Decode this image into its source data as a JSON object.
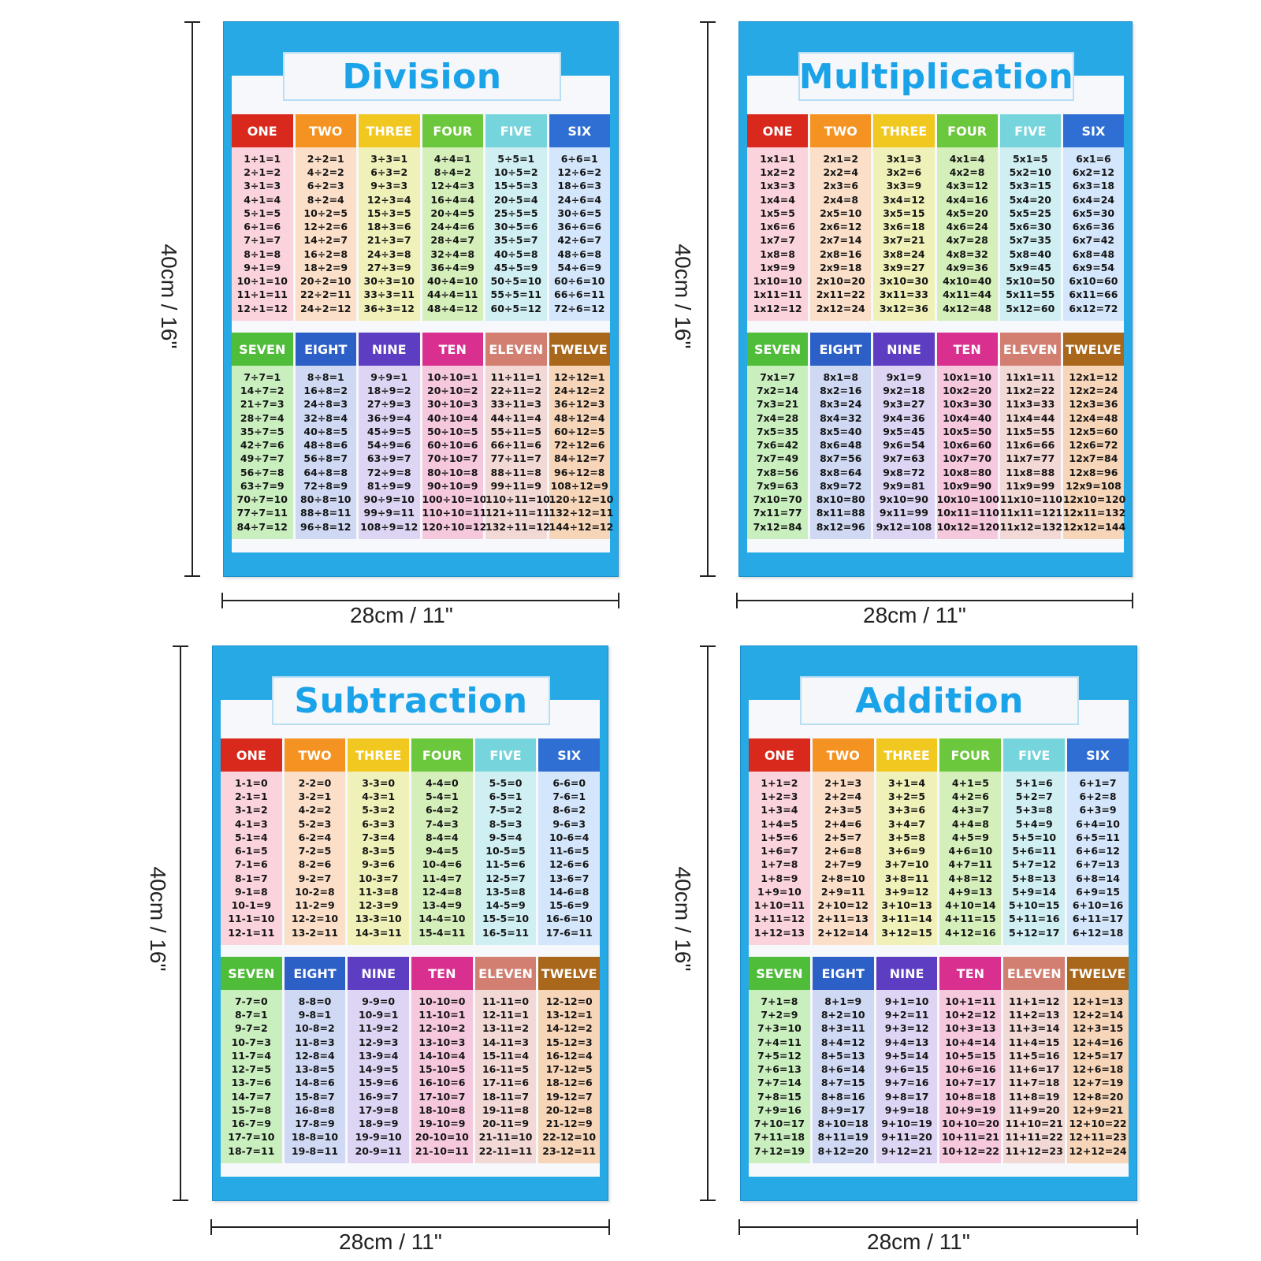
{
  "columns": {
    "top": [
      "ONE",
      "TWO",
      "THREE",
      "FOUR",
      "FIVE",
      "SIX"
    ],
    "bottom": [
      "SEVEN",
      "EIGHT",
      "NINE",
      "TEN",
      "ELEVEN",
      "TWELVE"
    ]
  },
  "colors": {
    "poster_blue": "#27a9e6",
    "title_text": "#1aa3e8",
    "header": [
      "#d9291c",
      "#f59322",
      "#f1c81f",
      "#6bc73c",
      "#76d5dc",
      "#2f6fd3",
      "#4fbd3a",
      "#2d60c7",
      "#5d3ec2",
      "#d92f8f",
      "#d27f72",
      "#a8671a"
    ],
    "body": [
      "#fbd3dd",
      "#fbdfc8",
      "#f0f1b9",
      "#d5efbb",
      "#cfeff3",
      "#d4e6fb",
      "#c9efbf",
      "#cfd9f3",
      "#ddd5f3",
      "#f6c8de",
      "#f3d9d6",
      "#f6d5b8"
    ]
  },
  "posters": {
    "division": {
      "title": "Division",
      "height_label": "40cm / 16\"",
      "width_label": "28cm / 11\"",
      "columns": [
        [
          "1÷1=1",
          "2÷1=2",
          "3÷1=3",
          "4÷1=4",
          "5÷1=5",
          "6÷1=6",
          "7÷1=7",
          "8÷1=8",
          "9÷1=9",
          "10÷1=10",
          "11÷1=11",
          "12÷1=12"
        ],
        [
          "2÷2=1",
          "4÷2=2",
          "6÷2=3",
          "8÷2=4",
          "10÷2=5",
          "12÷2=6",
          "14÷2=7",
          "16÷2=8",
          "18÷2=9",
          "20÷2=10",
          "22÷2=11",
          "24÷2=12"
        ],
        [
          "3÷3=1",
          "6÷3=2",
          "9÷3=3",
          "12÷3=4",
          "15÷3=5",
          "18÷3=6",
          "21÷3=7",
          "24÷3=8",
          "27÷3=9",
          "30÷3=10",
          "33÷3=11",
          "36÷3=12"
        ],
        [
          "4÷4=1",
          "8÷4=2",
          "12÷4=3",
          "16÷4=4",
          "20÷4=5",
          "24÷4=6",
          "28÷4=7",
          "32÷4=8",
          "36÷4=9",
          "40÷4=10",
          "44÷4=11",
          "48÷4=12"
        ],
        [
          "5÷5=1",
          "10÷5=2",
          "15÷5=3",
          "20÷5=4",
          "25÷5=5",
          "30÷5=6",
          "35÷5=7",
          "40÷5=8",
          "45÷5=9",
          "50÷5=10",
          "55÷5=11",
          "60÷5=12"
        ],
        [
          "6÷6=1",
          "12÷6=2",
          "18÷6=3",
          "24÷6=4",
          "30÷6=5",
          "36÷6=6",
          "42÷6=7",
          "48÷6=8",
          "54÷6=9",
          "60÷6=10",
          "66÷6=11",
          "72÷6=12"
        ],
        [
          "7÷7=1",
          "14÷7=2",
          "21÷7=3",
          "28÷7=4",
          "35÷7=5",
          "42÷7=6",
          "49÷7=7",
          "56÷7=8",
          "63÷7=9",
          "70÷7=10",
          "77÷7=11",
          "84÷7=12"
        ],
        [
          "8÷8=1",
          "16÷8=2",
          "24÷8=3",
          "32÷8=4",
          "40÷8=5",
          "48÷8=6",
          "56÷8=7",
          "64÷8=8",
          "72÷8=9",
          "80÷8=10",
          "88÷8=11",
          "96÷8=12"
        ],
        [
          "9÷9=1",
          "18÷9=2",
          "27÷9=3",
          "36÷9=4",
          "45÷9=5",
          "54÷9=6",
          "63÷9=7",
          "72÷9=8",
          "81÷9=9",
          "90÷9=10",
          "99÷9=11",
          "108÷9=12"
        ],
        [
          "10÷10=1",
          "20÷10=2",
          "30÷10=3",
          "40÷10=4",
          "50÷10=5",
          "60÷10=6",
          "70÷10=7",
          "80÷10=8",
          "90÷10=9",
          "100÷10=10",
          "110÷10=11",
          "120÷10=12"
        ],
        [
          "11÷11=1",
          "22÷11=2",
          "33÷11=3",
          "44÷11=4",
          "55÷11=5",
          "66÷11=6",
          "77÷11=7",
          "88÷11=8",
          "99÷11=9",
          "110÷11=10",
          "121÷11=11",
          "132÷11=12"
        ],
        [
          "12÷12=1",
          "24÷12=2",
          "36÷12=3",
          "48÷12=4",
          "60÷12=5",
          "72÷12=6",
          "84÷12=7",
          "96÷12=8",
          "108÷12=9",
          "120÷12=10",
          "132÷12=11",
          "144÷12=12"
        ]
      ]
    },
    "multiplication": {
      "title": "Multiplication",
      "height_label": "40cm / 16\"",
      "width_label": "28cm / 11\"",
      "columns": [
        [
          "1x1=1",
          "1x2=2",
          "1x3=3",
          "1x4=4",
          "1x5=5",
          "1x6=6",
          "1x7=7",
          "1x8=8",
          "1x9=9",
          "1x10=10",
          "1x11=11",
          "1x12=12"
        ],
        [
          "2x1=2",
          "2x2=4",
          "2x3=6",
          "2x4=8",
          "2x5=10",
          "2x6=12",
          "2x7=14",
          "2x8=16",
          "2x9=18",
          "2x10=20",
          "2x11=22",
          "2x12=24"
        ],
        [
          "3x1=3",
          "3x2=6",
          "3x3=9",
          "3x4=12",
          "3x5=15",
          "3x6=18",
          "3x7=21",
          "3x8=24",
          "3x9=27",
          "3x10=30",
          "3x11=33",
          "3x12=36"
        ],
        [
          "4x1=4",
          "4x2=8",
          "4x3=12",
          "4x4=16",
          "4x5=20",
          "4x6=24",
          "4x7=28",
          "4x8=32",
          "4x9=36",
          "4x10=40",
          "4x11=44",
          "4x12=48"
        ],
        [
          "5x1=5",
          "5x2=10",
          "5x3=15",
          "5x4=20",
          "5x5=25",
          "5x6=30",
          "5x7=35",
          "5x8=40",
          "5x9=45",
          "5x10=50",
          "5x11=55",
          "5x12=60"
        ],
        [
          "6x1=6",
          "6x2=12",
          "6x3=18",
          "6x4=24",
          "6x5=30",
          "6x6=36",
          "6x7=42",
          "6x8=48",
          "6x9=54",
          "6x10=60",
          "6x11=66",
          "6x12=72"
        ],
        [
          "7x1=7",
          "7x2=14",
          "7x3=21",
          "7x4=28",
          "7x5=35",
          "7x6=42",
          "7x7=49",
          "7x8=56",
          "7x9=63",
          "7x10=70",
          "7x11=77",
          "7x12=84"
        ],
        [
          "8x1=8",
          "8x2=16",
          "8x3=24",
          "8x4=32",
          "8x5=40",
          "8x6=48",
          "8x7=56",
          "8x8=64",
          "8x9=72",
          "8x10=80",
          "8x11=88",
          "8x12=96"
        ],
        [
          "9x1=9",
          "9x2=18",
          "9x3=27",
          "9x4=36",
          "9x5=45",
          "9x6=54",
          "9x7=63",
          "9x8=72",
          "9x9=81",
          "9x10=90",
          "9x11=99",
          "9x12=108"
        ],
        [
          "10x1=10",
          "10x2=20",
          "10x3=30",
          "10x4=40",
          "10x5=50",
          "10x6=60",
          "10x7=70",
          "10x8=80",
          "10x9=90",
          "10x10=100",
          "10x11=110",
          "10x12=120"
        ],
        [
          "11x1=11",
          "11x2=22",
          "11x3=33",
          "11x4=44",
          "11x5=55",
          "11x6=66",
          "11x7=77",
          "11x8=88",
          "11x9=99",
          "11x10=110",
          "11x11=121",
          "11x12=132"
        ],
        [
          "12x1=12",
          "12x2=24",
          "12x3=36",
          "12x4=48",
          "12x5=60",
          "12x6=72",
          "12x7=84",
          "12x8=96",
          "12x9=108",
          "12x10=120",
          "12x11=132",
          "12x12=144"
        ]
      ]
    },
    "subtraction": {
      "title": "Subtraction",
      "height_label": "40cm / 16\"",
      "width_label": "28cm / 11\"",
      "columns": [
        [
          "1-1=0",
          "2-1=1",
          "3-1=2",
          "4-1=3",
          "5-1=4",
          "6-1=5",
          "7-1=6",
          "8-1=7",
          "9-1=8",
          "10-1=9",
          "11-1=10",
          "12-1=11"
        ],
        [
          "2-2=0",
          "3-2=1",
          "4-2=2",
          "5-2=3",
          "6-2=4",
          "7-2=5",
          "8-2=6",
          "9-2=7",
          "10-2=8",
          "11-2=9",
          "12-2=10",
          "13-2=11"
        ],
        [
          "3-3=0",
          "4-3=1",
          "5-3=2",
          "6-3=3",
          "7-3=4",
          "8-3=5",
          "9-3=6",
          "10-3=7",
          "11-3=8",
          "12-3=9",
          "13-3=10",
          "14-3=11"
        ],
        [
          "4-4=0",
          "5-4=1",
          "6-4=2",
          "7-4=3",
          "8-4=4",
          "9-4=5",
          "10-4=6",
          "11-4=7",
          "12-4=8",
          "13-4=9",
          "14-4=10",
          "15-4=11"
        ],
        [
          "5-5=0",
          "6-5=1",
          "7-5=2",
          "8-5=3",
          "9-5=4",
          "10-5=5",
          "11-5=6",
          "12-5=7",
          "13-5=8",
          "14-5=9",
          "15-5=10",
          "16-5=11"
        ],
        [
          "6-6=0",
          "7-6=1",
          "8-6=2",
          "9-6=3",
          "10-6=4",
          "11-6=5",
          "12-6=6",
          "13-6=7",
          "14-6=8",
          "15-6=9",
          "16-6=10",
          "17-6=11"
        ],
        [
          "7-7=0",
          "8-7=1",
          "9-7=2",
          "10-7=3",
          "11-7=4",
          "12-7=5",
          "13-7=6",
          "14-7=7",
          "15-7=8",
          "16-7=9",
          "17-7=10",
          "18-7=11"
        ],
        [
          "8-8=0",
          "9-8=1",
          "10-8=2",
          "11-8=3",
          "12-8=4",
          "13-8=5",
          "14-8=6",
          "15-8=7",
          "16-8=8",
          "17-8=9",
          "18-8=10",
          "19-8=11"
        ],
        [
          "9-9=0",
          "10-9=1",
          "11-9=2",
          "12-9=3",
          "13-9=4",
          "14-9=5",
          "15-9=6",
          "16-9=7",
          "17-9=8",
          "18-9=9",
          "19-9=10",
          "20-9=11"
        ],
        [
          "10-10=0",
          "11-10=1",
          "12-10=2",
          "13-10=3",
          "14-10=4",
          "15-10=5",
          "16-10=6",
          "17-10=7",
          "18-10=8",
          "19-10=9",
          "20-10=10",
          "21-10=11"
        ],
        [
          "11-11=0",
          "12-11=1",
          "13-11=2",
          "14-11=3",
          "15-11=4",
          "16-11=5",
          "17-11=6",
          "18-11=7",
          "19-11=8",
          "20-11=9",
          "21-11=10",
          "22-11=11"
        ],
        [
          "12-12=0",
          "13-12=1",
          "14-12=2",
          "15-12=3",
          "16-12=4",
          "17-12=5",
          "18-12=6",
          "19-12=7",
          "20-12=8",
          "21-12=9",
          "22-12=10",
          "23-12=11"
        ]
      ]
    },
    "addition": {
      "title": "Addition",
      "height_label": "40cm / 16\"",
      "width_label": "28cm / 11\"",
      "columns": [
        [
          "1+1=2",
          "1+2=3",
          "1+3=4",
          "1+4=5",
          "1+5=6",
          "1+6=7",
          "1+7=8",
          "1+8=9",
          "1+9=10",
          "1+10=11",
          "1+11=12",
          "1+12=13"
        ],
        [
          "2+1=3",
          "2+2=4",
          "2+3=5",
          "2+4=6",
          "2+5=7",
          "2+6=8",
          "2+7=9",
          "2+8=10",
          "2+9=11",
          "2+10=12",
          "2+11=13",
          "2+12=14"
        ],
        [
          "3+1=4",
          "3+2=5",
          "3+3=6",
          "3+4=7",
          "3+5=8",
          "3+6=9",
          "3+7=10",
          "3+8=11",
          "3+9=12",
          "3+10=13",
          "3+11=14",
          "3+12=15"
        ],
        [
          "4+1=5",
          "4+2=6",
          "4+3=7",
          "4+4=8",
          "4+5=9",
          "4+6=10",
          "4+7=11",
          "4+8=12",
          "4+9=13",
          "4+10=14",
          "4+11=15",
          "4+12=16"
        ],
        [
          "5+1=6",
          "5+2=7",
          "5+3=8",
          "5+4=9",
          "5+5=10",
          "5+6=11",
          "5+7=12",
          "5+8=13",
          "5+9=14",
          "5+10=15",
          "5+11=16",
          "5+12=17"
        ],
        [
          "6+1=7",
          "6+2=8",
          "6+3=9",
          "6+4=10",
          "6+5=11",
          "6+6=12",
          "6+7=13",
          "6+8=14",
          "6+9=15",
          "6+10=16",
          "6+11=17",
          "6+12=18"
        ],
        [
          "7+1=8",
          "7+2=9",
          "7+3=10",
          "7+4=11",
          "7+5=12",
          "7+6=13",
          "7+7=14",
          "7+8=15",
          "7+9=16",
          "7+10=17",
          "7+11=18",
          "7+12=19"
        ],
        [
          "8+1=9",
          "8+2=10",
          "8+3=11",
          "8+4=12",
          "8+5=13",
          "8+6=14",
          "8+7=15",
          "8+8=16",
          "8+9=17",
          "8+10=18",
          "8+11=19",
          "8+12=20"
        ],
        [
          "9+1=10",
          "9+2=11",
          "9+3=12",
          "9+4=13",
          "9+5=14",
          "9+6=15",
          "9+7=16",
          "9+8=17",
          "9+9=18",
          "9+10=19",
          "9+11=20",
          "9+12=21"
        ],
        [
          "10+1=11",
          "10+2=12",
          "10+3=13",
          "10+4=14",
          "10+5=15",
          "10+6=16",
          "10+7=17",
          "10+8=18",
          "10+9=19",
          "10+10=20",
          "10+11=21",
          "10+12=22"
        ],
        [
          "11+1=12",
          "11+2=13",
          "11+3=14",
          "11+4=15",
          "11+5=16",
          "11+6=17",
          "11+7=18",
          "11+8=19",
          "11+9=20",
          "11+10=21",
          "11+11=22",
          "11+12=23"
        ],
        [
          "12+1=13",
          "12+2=14",
          "12+3=15",
          "12+4=16",
          "12+5=17",
          "12+6=18",
          "12+7=19",
          "12+8=20",
          "12+9=21",
          "12+10=22",
          "12+11=23",
          "12+12=24"
        ]
      ]
    }
  }
}
